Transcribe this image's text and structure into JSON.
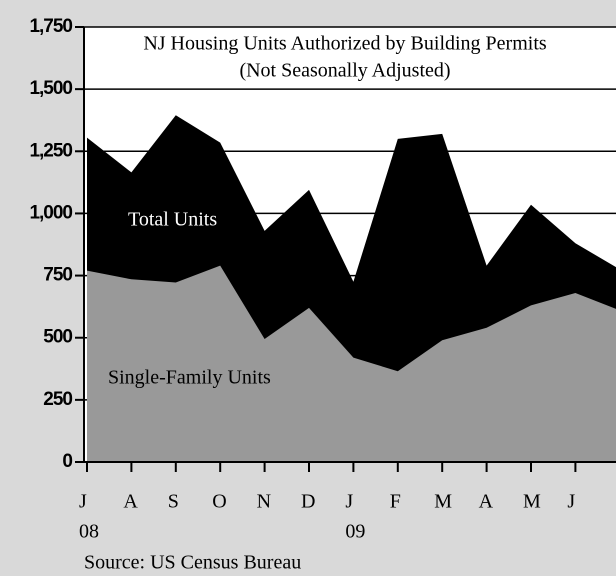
{
  "chart_data": {
    "type": "area",
    "title": "NJ Housing Units Authorized by Building Permits",
    "subtitle": "(Not Seasonally Adjusted)",
    "categories": [
      "J",
      "A",
      "S",
      "O",
      "N",
      "D",
      "J",
      "F",
      "M",
      "A",
      "M",
      "J",
      null
    ],
    "year_labels": [
      "08",
      null,
      null,
      null,
      null,
      null,
      "09",
      null,
      null,
      null,
      null,
      null,
      null
    ],
    "series": [
      {
        "name": "Total Units",
        "color": "#000000",
        "values": [
          1305,
          1165,
          1395,
          1285,
          930,
          1095,
          725,
          1300,
          1320,
          790,
          1035,
          880,
          775
        ]
      },
      {
        "name": "Single-Family Units",
        "color": "#999999",
        "values": [
          770,
          735,
          722,
          790,
          495,
          620,
          420,
          365,
          490,
          540,
          630,
          680,
          610
        ]
      }
    ],
    "ylim": [
      0,
      1750
    ],
    "yticks": [
      0,
      250,
      500,
      750,
      {
        "value": 1000,
        "label": "1,000"
      },
      {
        "value": 1250,
        "label": "1,250"
      },
      {
        "value": 1500,
        "label": "1,500"
      },
      {
        "value": 1750,
        "label": "1,750"
      }
    ],
    "grid": true,
    "source": "Source: US Census Bureau"
  }
}
